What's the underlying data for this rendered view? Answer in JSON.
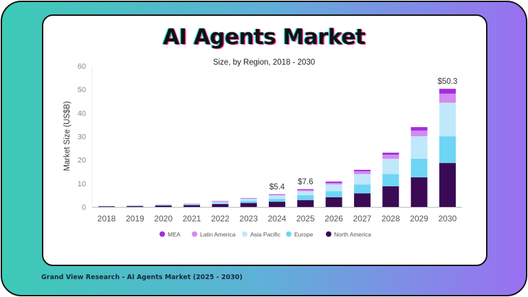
{
  "chart_data": {
    "type": "bar",
    "stacked": true,
    "title": "AI Agents Market",
    "subtitle": "Size, by Region, 2018 - 2030",
    "ylabel": "Market Size (US$B)",
    "xlabel": "",
    "ylim": [
      0,
      60
    ],
    "yticks": [
      0,
      10,
      20,
      30,
      40,
      50,
      60
    ],
    "grid": false,
    "legend_position": "bottom",
    "categories": [
      "2018",
      "2019",
      "2020",
      "2021",
      "2022",
      "2023",
      "2024",
      "2025",
      "2026",
      "2027",
      "2028",
      "2029",
      "2030"
    ],
    "series": [
      {
        "name": "North America",
        "color": "#3a0a55",
        "values": [
          0.3,
          0.4,
          0.6,
          0.8,
          1.2,
          1.7,
          2.2,
          2.9,
          4.1,
          5.8,
          8.8,
          12.6,
          18.7
        ]
      },
      {
        "name": "Europe",
        "color": "#6fd5f5",
        "values": [
          0.1,
          0.1,
          0.2,
          0.3,
          0.5,
          0.8,
          1.2,
          2.1,
          2.6,
          3.8,
          5.2,
          7.9,
          11.4
        ]
      },
      {
        "name": "Asia Pacific",
        "color": "#bfe8fb",
        "values": [
          0.1,
          0.1,
          0.2,
          0.3,
          0.6,
          1.0,
          1.5,
          1.7,
          2.9,
          4.4,
          6.5,
          9.6,
          14.3
        ]
      },
      {
        "name": "Latin America",
        "color": "#d48af0",
        "values": [
          0.0,
          0.05,
          0.05,
          0.1,
          0.1,
          0.15,
          0.3,
          0.6,
          0.6,
          1.2,
          1.7,
          2.4,
          3.8
        ]
      },
      {
        "name": "MEA",
        "color": "#a22ee0",
        "values": [
          0.0,
          0.0,
          0.0,
          0.0,
          0.05,
          0.05,
          0.2,
          0.3,
          0.6,
          0.6,
          0.9,
          1.5,
          2.1
        ]
      }
    ],
    "annotations": [
      {
        "category": "2024",
        "label": "$5.4"
      },
      {
        "category": "2025",
        "label": "$7.6"
      },
      {
        "category": "2030",
        "label": "$50.3"
      }
    ],
    "legend_order": [
      "MEA",
      "Latin America",
      "Asia Pacific",
      "Europe",
      "North America"
    ]
  },
  "footer": "Grand View Research - AI Agents Market (2025 - 2030)"
}
